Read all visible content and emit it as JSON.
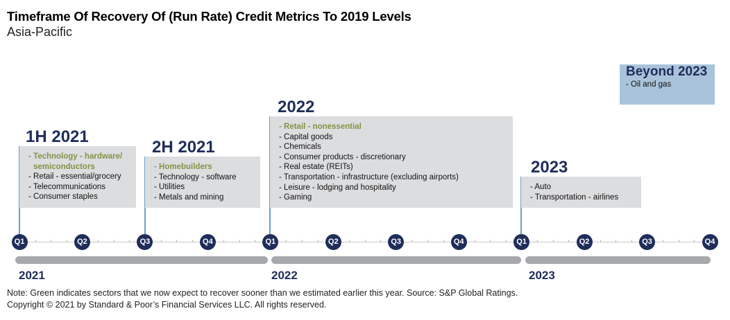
{
  "title": "Timeframe Of Recovery Of (Run Rate) Credit Metrics To 2019 Levels",
  "subtitle": "Asia-Pacific",
  "periods": [
    {
      "heading": "1H 2021",
      "items": [
        {
          "text": "- Technology - hardware/ semiconductors",
          "green": true
        },
        {
          "text": "- Retail - essential/grocery"
        },
        {
          "text": "- Telecommunications"
        },
        {
          "text": "- Consumer staples"
        }
      ]
    },
    {
      "heading": "2H 2021",
      "items": [
        {
          "text": "- Homebuilders",
          "green": true
        },
        {
          "text": "- Technology - software"
        },
        {
          "text": "- Utilities"
        },
        {
          "text": "- Metals and mining"
        }
      ]
    },
    {
      "heading": "2022",
      "items": [
        {
          "text": "- Retail - nonessential",
          "green": true
        },
        {
          "text": "- Capital goods"
        },
        {
          "text": "- Chemicals"
        },
        {
          "text": "- Consumer products - discretionary"
        },
        {
          "text": "- Real estate (REITs)"
        },
        {
          "text": "- Transportation - infrastructure (excluding airports)"
        },
        {
          "text": "- Leisure - lodging and hospitality"
        },
        {
          "text": "- Gaming"
        }
      ]
    },
    {
      "heading": "2023",
      "items": [
        {
          "text": "- Auto"
        },
        {
          "text": "- Transportation - airlines"
        }
      ]
    },
    {
      "heading": "Beyond 2023",
      "items": [
        {
          "text": "- Oil and gas"
        }
      ]
    }
  ],
  "quarters": [
    "Q1",
    "Q2",
    "Q3",
    "Q4",
    "Q1",
    "Q2",
    "Q3",
    "Q4",
    "Q1",
    "Q2",
    "Q3",
    "Q4"
  ],
  "years": [
    "2021",
    "2022",
    "2023"
  ],
  "colors": {
    "navy": "#1f2d5a",
    "green": "#7f9447",
    "box": "#dcdddf",
    "beyond": "#a9c3da",
    "stem": "#6a9fcc",
    "bar": "#a6a8ab"
  },
  "note": "Note: Green indicates sectors that we now expect to recover sooner than we estimated earlier this year. Source: S&P Global Ratings.",
  "copyright": "Copyright © 2021 by Standard & Poor’s Financial Services LLC. All rights reserved."
}
